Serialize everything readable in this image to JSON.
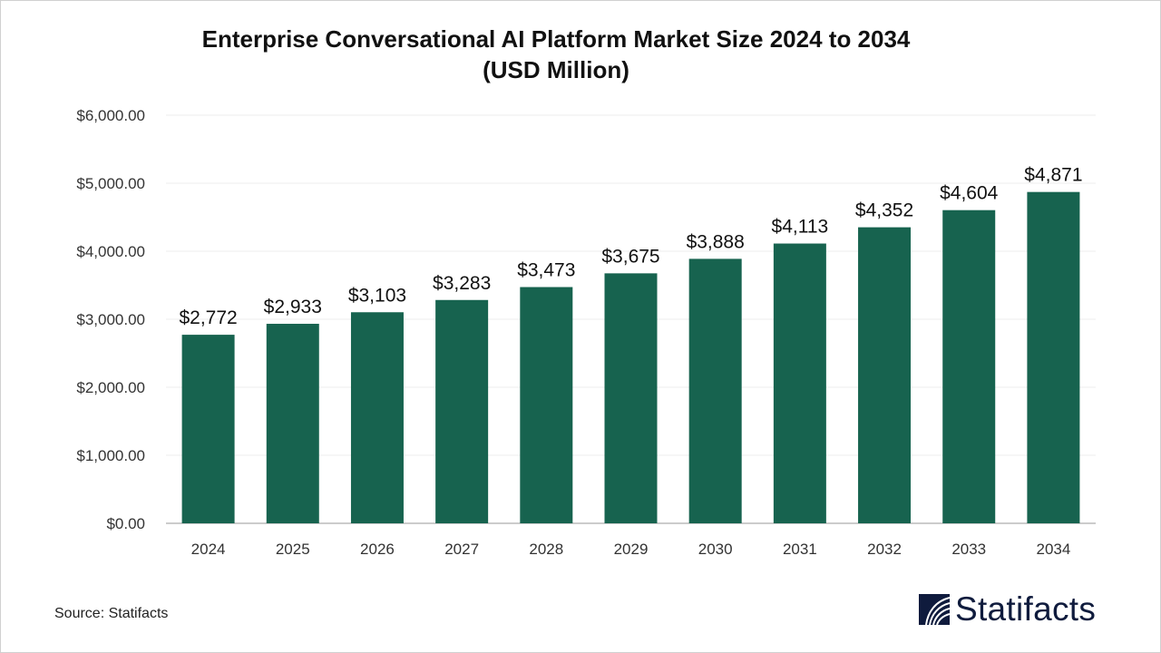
{
  "chart_data": {
    "type": "bar",
    "title": "Enterprise Conversational AI Platform Market Size 2024 to 2034",
    "subtitle": "(USD Million)",
    "categories": [
      "2024",
      "2025",
      "2026",
      "2027",
      "2028",
      "2029",
      "2030",
      "2031",
      "2032",
      "2033",
      "2034"
    ],
    "values": [
      2772,
      2933,
      3103,
      3283,
      3473,
      3675,
      3888,
      4113,
      4352,
      4604,
      4871
    ],
    "data_labels": [
      "$2,772",
      "$2,933",
      "$3,103",
      "$3,283",
      "$3,473",
      "$3,675",
      "$3,888",
      "$4,113",
      "$4,352",
      "$4,604",
      "$4,871"
    ],
    "yticks": [
      0,
      1000,
      2000,
      3000,
      4000,
      5000,
      6000
    ],
    "ytick_labels": [
      "$0.00",
      "$1,000.00",
      "$2,000.00",
      "$3,000.00",
      "$4,000.00",
      "$5,000.00",
      "$6,000.00"
    ],
    "ylim": [
      0,
      6000
    ],
    "grid": true,
    "bar_color": "#17634f",
    "xlabel": "",
    "ylabel": ""
  },
  "source": "Source: Statifacts",
  "logo": {
    "text": "Statifacts",
    "color": "#0f1b3d"
  }
}
